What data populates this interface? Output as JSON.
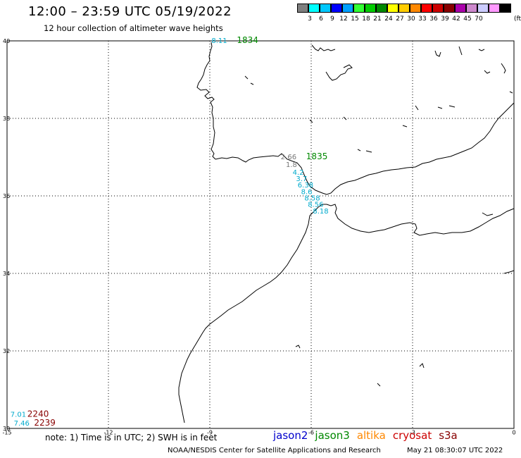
{
  "header": {
    "title": "12:00 – 23:59 UTC 05/19/2022",
    "subtitle": "12 hour collection of altimeter wave heights"
  },
  "color_scale": {
    "unit": "(ft)",
    "colors": [
      "#7f7f7f",
      "#00ffff",
      "#00c8ff",
      "#0000ff",
      "#00a0ff",
      "#33ff33",
      "#00cc00",
      "#008800",
      "#ffff00",
      "#ffcc00",
      "#ff8800",
      "#ff0000",
      "#cc0000",
      "#880000",
      "#aa00aa",
      "#cc88cc",
      "#ccccff",
      "#ff99ff",
      "#000000"
    ],
    "labels": [
      "3",
      "6",
      "9",
      "12",
      "15",
      "18",
      "21",
      "24",
      "27",
      "30",
      "33",
      "36",
      "39",
      "42",
      "45",
      "70"
    ]
  },
  "axes": {
    "lon_labels": [
      "-15",
      "-12",
      "-9",
      "-6",
      "-3",
      "0"
    ],
    "lat_labels": [
      "40",
      "38",
      "36",
      "34",
      "32",
      "30"
    ]
  },
  "wave_labels": [
    {
      "text": "8.11",
      "color": "#00aacc",
      "lon": -8.95,
      "lat": 39.95
    },
    {
      "text": "1834",
      "color": "#008800",
      "lon": -8.2,
      "lat": 39.95,
      "kind": "time"
    },
    {
      "text": "2.66",
      "color": "#777777",
      "lon": -6.9,
      "lat": 36.95
    },
    {
      "text": "1835",
      "color": "#008800",
      "lon": -6.15,
      "lat": 36.95,
      "kind": "time"
    },
    {
      "text": "1.8",
      "color": "#777777",
      "lon": -6.75,
      "lat": 36.75
    },
    {
      "text": "4.2",
      "color": "#00aacc",
      "lon": -6.55,
      "lat": 36.55
    },
    {
      "text": "3.7",
      "color": "#00aacc",
      "lon": -6.45,
      "lat": 36.38
    },
    {
      "text": "6.38",
      "color": "#00aacc",
      "lon": -6.4,
      "lat": 36.22
    },
    {
      "text": "8.6",
      "color": "#00aacc",
      "lon": -6.3,
      "lat": 36.05
    },
    {
      "text": "8.58",
      "color": "#00aacc",
      "lon": -6.2,
      "lat": 35.88
    },
    {
      "text": "8.56",
      "color": "#00aacc",
      "lon": -6.1,
      "lat": 35.72
    },
    {
      "text": "8.18",
      "color": "#00aacc",
      "lon": -5.95,
      "lat": 35.55
    },
    {
      "text": "7.01",
      "color": "#00aacc",
      "lon": -14.9,
      "lat": 30.3
    },
    {
      "text": "2240",
      "color": "#880000",
      "lon": -14.4,
      "lat": 30.3,
      "kind": "time"
    },
    {
      "text": "7.46",
      "color": "#00aacc",
      "lon": -14.8,
      "lat": 30.07
    },
    {
      "text": "2239",
      "color": "#880000",
      "lon": -14.2,
      "lat": 30.07,
      "kind": "time"
    }
  ],
  "footer": {
    "note": "note: 1) Time is in UTC; 2) SWH is in feet",
    "credit": "NOAA/NESDIS Center for Satellite Applications and Research",
    "timestamp": "May 21 08:30:07 UTC 2022"
  },
  "legend": [
    {
      "label": "jason2",
      "color": "#0000cc"
    },
    {
      "label": "jason3",
      "color": "#008800"
    },
    {
      "label": "altika",
      "color": "#ff8800"
    },
    {
      "label": "cryosat",
      "color": "#cc0000"
    },
    {
      "label": "s3a",
      "color": "#880000"
    }
  ]
}
